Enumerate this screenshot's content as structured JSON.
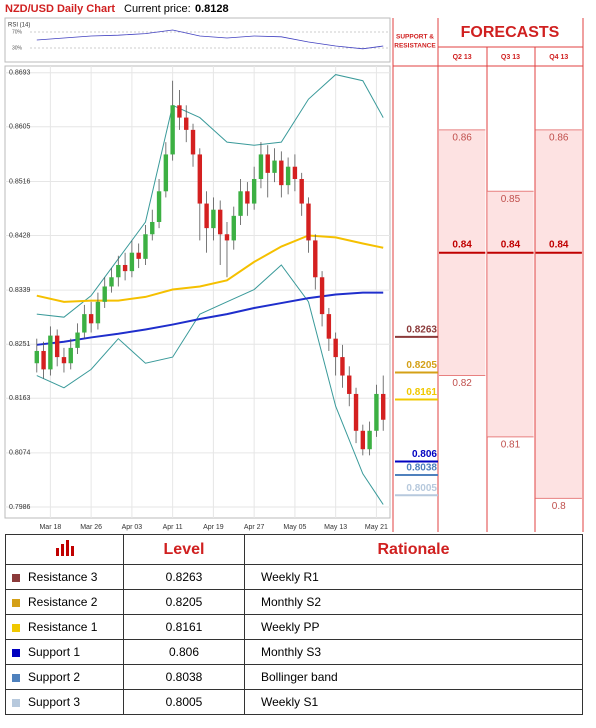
{
  "header": {
    "title": "NZD/USD Daily Chart",
    "price_label": "Current price:",
    "current_price": 0.8128
  },
  "chart_data": {
    "type": "candlestick",
    "xlim": [
      -1,
      52
    ],
    "ylim": [
      0.7968,
      0.8704
    ],
    "yticks": [
      0.8693,
      0.8605,
      0.8516,
      0.8428,
      0.8339,
      0.8251,
      0.8163,
      0.8074,
      0.7986
    ],
    "xticks": [
      {
        "value": 2,
        "label": "Mar 18"
      },
      {
        "value": 8,
        "label": "Mar 26"
      },
      {
        "value": 14,
        "label": "Apr 03"
      },
      {
        "value": 20,
        "label": "Apr 11"
      },
      {
        "value": 26,
        "label": "Apr 19"
      },
      {
        "value": 32,
        "label": "Apr 27"
      },
      {
        "value": 38,
        "label": "May 05"
      },
      {
        "value": 44,
        "label": "May 13"
      },
      {
        "value": 50,
        "label": "May 21"
      }
    ],
    "grid": true,
    "up_color": "#3cb043",
    "down_color": "#d42020",
    "open": [
      0.822,
      0.824,
      0.821,
      0.8265,
      0.823,
      0.822,
      0.8245,
      0.827,
      0.83,
      0.8285,
      0.832,
      0.8345,
      0.836,
      0.838,
      0.837,
      0.84,
      0.839,
      0.843,
      0.845,
      0.85,
      0.856,
      0.864,
      0.862,
      0.86,
      0.856,
      0.848,
      0.844,
      0.847,
      0.843,
      0.842,
      0.846,
      0.85,
      0.848,
      0.852,
      0.856,
      0.853,
      0.855,
      0.851,
      0.854,
      0.852,
      0.848,
      0.842,
      0.836,
      0.83,
      0.826,
      0.823,
      0.82,
      0.817,
      0.811,
      0.808,
      0.811,
      0.817
    ],
    "high": [
      0.826,
      0.8255,
      0.828,
      0.8275,
      0.8245,
      0.826,
      0.8285,
      0.8315,
      0.832,
      0.8335,
      0.836,
      0.8375,
      0.8395,
      0.84,
      0.842,
      0.8415,
      0.8445,
      0.847,
      0.852,
      0.858,
      0.868,
      0.8665,
      0.864,
      0.861,
      0.857,
      0.85,
      0.849,
      0.8485,
      0.845,
      0.8475,
      0.852,
      0.8515,
      0.854,
      0.858,
      0.8575,
      0.857,
      0.8565,
      0.8555,
      0.856,
      0.853,
      0.849,
      0.843,
      0.837,
      0.831,
      0.827,
      0.825,
      0.8215,
      0.818,
      0.812,
      0.8125,
      0.8185,
      0.82
    ],
    "low": [
      0.8205,
      0.8195,
      0.82,
      0.8215,
      0.8205,
      0.821,
      0.8235,
      0.826,
      0.827,
      0.8275,
      0.831,
      0.8335,
      0.8345,
      0.8355,
      0.836,
      0.8375,
      0.838,
      0.842,
      0.844,
      0.849,
      0.855,
      0.86,
      0.858,
      0.854,
      0.842,
      0.84,
      0.842,
      0.838,
      0.836,
      0.8405,
      0.8445,
      0.846,
      0.847,
      0.8505,
      0.849,
      0.8515,
      0.849,
      0.8495,
      0.85,
      0.846,
      0.84,
      0.834,
      0.828,
      0.824,
      0.82,
      0.818,
      0.815,
      0.809,
      0.807,
      0.807,
      0.81,
      0.811
    ],
    "close": [
      0.824,
      0.821,
      0.8265,
      0.823,
      0.822,
      0.8245,
      0.827,
      0.83,
      0.8285,
      0.832,
      0.8345,
      0.836,
      0.838,
      0.837,
      0.84,
      0.839,
      0.843,
      0.845,
      0.85,
      0.856,
      0.864,
      0.862,
      0.86,
      0.856,
      0.848,
      0.844,
      0.847,
      0.843,
      0.842,
      0.846,
      0.85,
      0.848,
      0.852,
      0.856,
      0.853,
      0.855,
      0.851,
      0.854,
      0.852,
      0.848,
      0.842,
      0.836,
      0.83,
      0.826,
      0.823,
      0.82,
      0.817,
      0.811,
      0.808,
      0.811,
      0.817,
      0.8128
    ],
    "line_x": [
      0,
      4,
      8,
      12,
      16,
      20,
      24,
      28,
      32,
      36,
      40,
      44,
      48,
      51
    ],
    "lines": [
      {
        "color": "#3a9a9a",
        "values": [
          0.83,
          0.8295,
          0.833,
          0.839,
          0.845,
          0.864,
          0.862,
          0.858,
          0.8575,
          0.858,
          0.865,
          0.869,
          0.868,
          0.862
        ]
      },
      {
        "color": "#3a9a9a",
        "values": [
          0.82,
          0.818,
          0.821,
          0.826,
          0.822,
          0.823,
          0.83,
          0.832,
          0.834,
          0.838,
          0.832,
          0.815,
          0.804,
          0.799
        ]
      },
      {
        "color": "#f5c000",
        "values": [
          0.833,
          0.832,
          0.8322,
          0.8322,
          0.8328,
          0.834,
          0.8345,
          0.8355,
          0.8385,
          0.841,
          0.8428,
          0.8425,
          0.8415,
          0.8408
        ]
      },
      {
        "color": "#1f2ecc",
        "values": [
          0.825,
          0.8255,
          0.8262,
          0.8268,
          0.8275,
          0.8283,
          0.8292,
          0.83,
          0.831,
          0.8318,
          0.8326,
          0.8332,
          0.8335,
          0.8335
        ]
      }
    ],
    "rsi": {
      "label": "RSI (14)",
      "ylim": [
        0,
        100
      ],
      "yticks": [
        {
          "value": 70,
          "label": "70%"
        },
        {
          "value": 30,
          "label": "30%"
        }
      ],
      "color": "#4040c0",
      "values": [
        50,
        55,
        60,
        62,
        66,
        75,
        60,
        55,
        60,
        58,
        45,
        35,
        28,
        35
      ]
    }
  },
  "support_resistance": {
    "header": [
      "SUPPORT &",
      "RESISTANCE"
    ]
  },
  "forecasts": {
    "title": "FORECASTS",
    "fill": "#fde2e2",
    "edge": "#e88080",
    "label_color": "#c0504d",
    "mid_color": "#c00000",
    "series": [
      {
        "name": "Q2 13",
        "values": [
          0.86,
          0.84,
          0.82
        ]
      },
      {
        "name": "Q3 13",
        "values": [
          0.85,
          0.84,
          0.81
        ]
      },
      {
        "name": "Q4 13",
        "values": [
          0.86,
          0.84,
          0.8
        ]
      }
    ]
  },
  "table": {
    "columns": [
      "Level",
      "Rationale"
    ],
    "rows": [
      {
        "name": "Resistance 3",
        "value": 0.8263,
        "rationale": "Weekly R1",
        "color": "#8b3a3a"
      },
      {
        "name": "Resistance 2",
        "value": 0.8205,
        "rationale": "Monthly S2",
        "color": "#d4a017"
      },
      {
        "name": "Resistance 1",
        "value": 0.8161,
        "rationale": "Weekly PP",
        "color": "#f0c800"
      },
      {
        "name": "Support 1",
        "value": 0.806,
        "rationale": "Monthly S3",
        "color": "#0000c0"
      },
      {
        "name": "Support 2",
        "value": 0.8038,
        "rationale": "Bollinger band",
        "color": "#4f81bd"
      },
      {
        "name": "Support 3",
        "value": 0.8005,
        "rationale": "Weekly S1",
        "color": "#b7c9dd"
      }
    ]
  }
}
